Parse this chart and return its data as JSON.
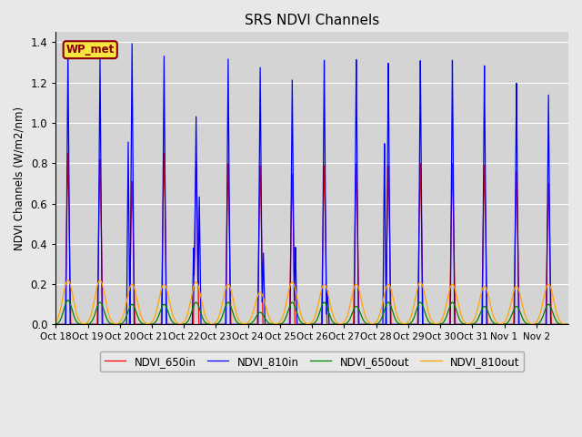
{
  "title": "SRS NDVI Channels",
  "ylabel": "NDVI Channels (W/m2/nm)",
  "legend_label": "WP_met",
  "line_labels": [
    "NDVI_650in",
    "NDVI_810in",
    "NDVI_650out",
    "NDVI_810out"
  ],
  "line_colors": [
    "red",
    "blue",
    "green",
    "orange"
  ],
  "ylim": [
    0,
    1.45
  ],
  "xlim": [
    0,
    16
  ],
  "figsize": [
    6.4,
    4.8
  ],
  "dpi": 100,
  "background_color": "#e8e8e8",
  "plot_bg_color": "#d4d4d4",
  "num_cycles": 16,
  "red_peaks": [
    0.85,
    0.82,
    0.71,
    0.85,
    0.8,
    0.8,
    0.79,
    0.75,
    0.79,
    0.8,
    0.79,
    0.8,
    0.8,
    0.79,
    0.76,
    0.7
  ],
  "blue_peaks": [
    1.36,
    1.32,
    1.4,
    1.34,
    1.04,
    1.33,
    1.29,
    1.23,
    1.33,
    1.33,
    1.31,
    1.32,
    1.32,
    1.29,
    1.2,
    1.14
  ],
  "blue_noise": [
    0.0,
    0.0,
    0.91,
    0.0,
    0.64,
    0.0,
    0.36,
    0.39,
    0.17,
    0.0,
    0.91,
    0.0,
    0.0,
    0.0,
    0.0,
    0.0
  ],
  "green_peaks": [
    0.12,
    0.11,
    0.1,
    0.1,
    0.11,
    0.11,
    0.06,
    0.11,
    0.11,
    0.09,
    0.11,
    0.11,
    0.11,
    0.09,
    0.09,
    0.1
  ],
  "orange_peaks": [
    0.22,
    0.22,
    0.2,
    0.2,
    0.21,
    0.2,
    0.16,
    0.21,
    0.2,
    0.2,
    0.2,
    0.21,
    0.2,
    0.19,
    0.19,
    0.2
  ],
  "x_tick_labels": [
    "Oct 18",
    "Oct 19",
    "Oct 20",
    "Oct 21",
    "Oct 22",
    "Oct 23",
    "Oct 24",
    "Oct 25",
    "Oct 26",
    "Oct 27",
    "Oct 28",
    "Oct 29",
    "Oct 30",
    "Oct 31",
    "Nov 1",
    "Nov 2"
  ]
}
